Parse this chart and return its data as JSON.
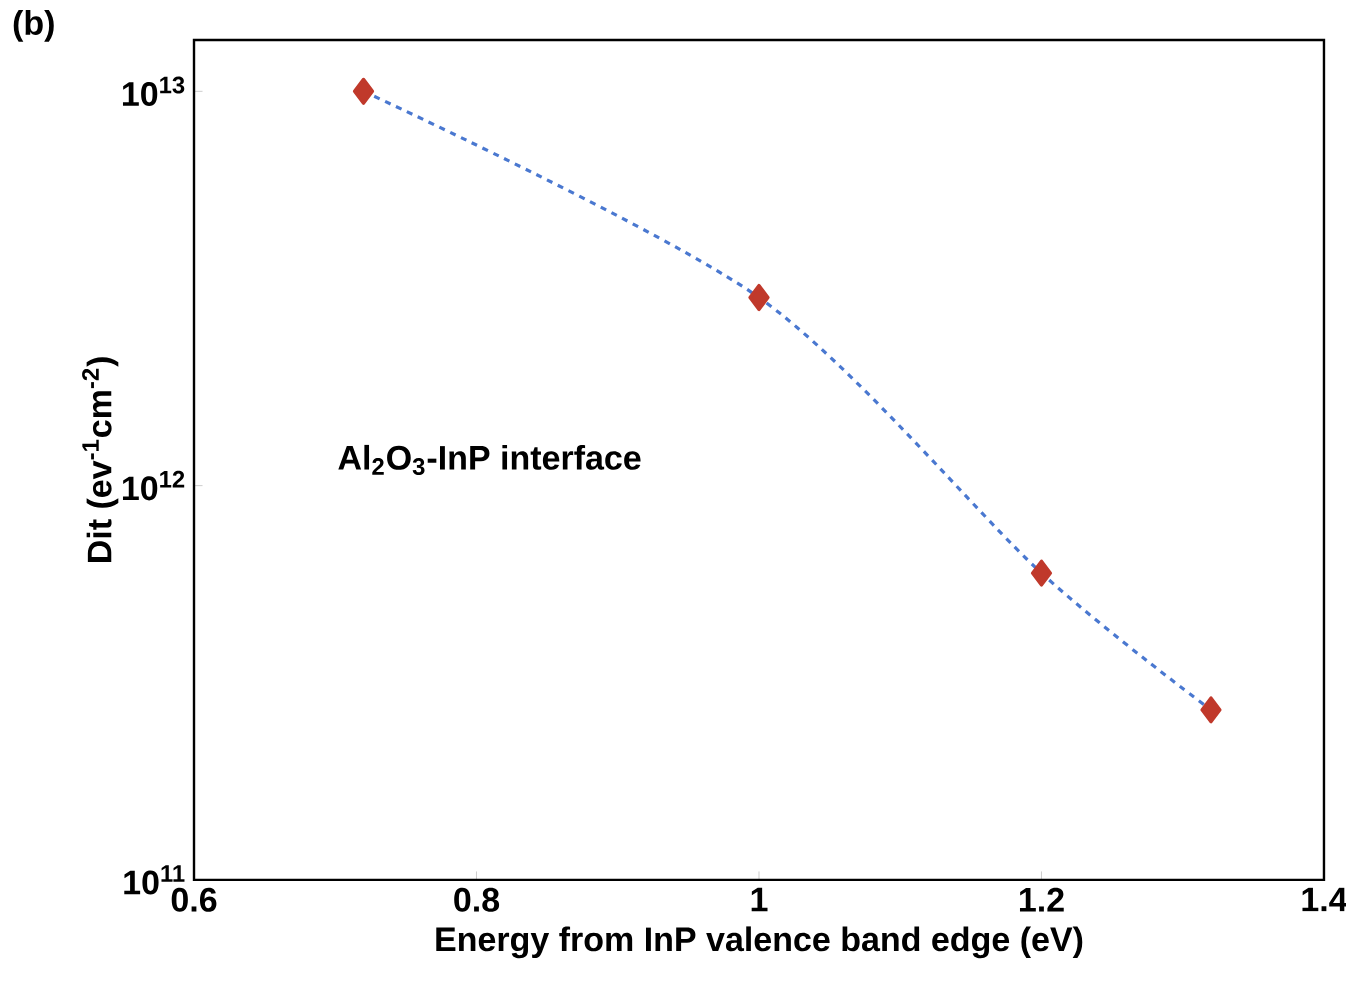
{
  "chart_data": {
    "type": "line",
    "xlabel": "Energy from InP valence band edge (eV)",
    "ylabel": "Dit (ev$^{-1}$cm$^{-2}$)",
    "annotations": [
      "(b)",
      "Al$_{2}$O$_{3}$-InP interface"
    ],
    "x": [
      0.72,
      1.0,
      1.2,
      1.32
    ],
    "series": [
      {
        "color": "#4a78d0",
        "values": [
          10000000000000.0,
          3000000000000.0,
          600000000000.0,
          270000000000.0
        ]
      }
    ],
    "marker": "diamond",
    "line_style": "dashed",
    "log": "y",
    "xlim": [
      0.6,
      1.4
    ],
    "xticks": [
      0.6,
      0.8,
      1,
      1.2,
      1.4
    ],
    "ylim": [
      100000000000.0,
      13500000000000.0
    ],
    "yticks": [
      {
        "value": 100000000000.0,
        "label": "10$^{11}$"
      },
      {
        "value": 1000000000000.0,
        "label": "10$^{12}$"
      },
      {
        "value": 10000000000000.0,
        "label": "10$^{13}$"
      }
    ]
  }
}
